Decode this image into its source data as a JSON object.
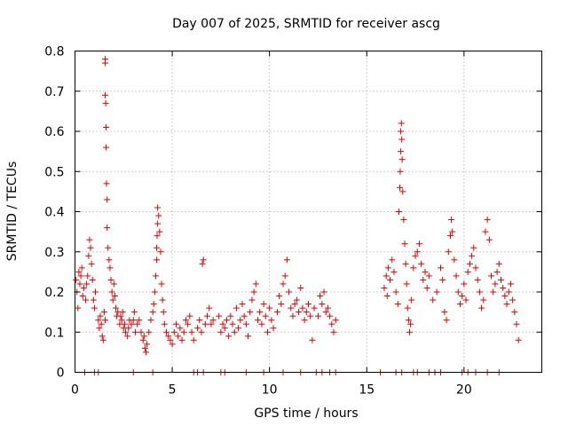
{
  "chart_data": {
    "type": "scatter",
    "title": "Day 007 of 2025, SRMTID for receiver ascg",
    "xlabel": "GPS time / hours",
    "ylabel": "SRMTID / TECUs",
    "xlim": [
      0,
      24
    ],
    "ylim": [
      0,
      0.8
    ],
    "xticks": [
      0,
      5,
      10,
      15,
      20
    ],
    "xtick_labels": [
      "0",
      "5",
      "10",
      "15",
      "20"
    ],
    "yticks": [
      0,
      0.1,
      0.2,
      0.3,
      0.4,
      0.5,
      0.6,
      0.7,
      0.8
    ],
    "ytick_labels": [
      "0",
      "0.1",
      "0.2",
      "0.3",
      "0.4",
      "0.5",
      "0.6",
      "0.7",
      "0.8"
    ],
    "grid": true,
    "marker": "+",
    "color": "#e00000",
    "series": [
      {
        "name": "SRMTID",
        "points": [
          [
            0.05,
            0.23
          ],
          [
            0.1,
            0.2
          ],
          [
            0.15,
            0.16
          ],
          [
            0.2,
            0.25
          ],
          [
            0.25,
            0.22
          ],
          [
            0.3,
            0.24
          ],
          [
            0.35,
            0.26
          ],
          [
            0.4,
            0.19
          ],
          [
            0.45,
            0.21
          ],
          [
            0.55,
            0.18
          ],
          [
            0.6,
            0.22
          ],
          [
            0.65,
            0.24
          ],
          [
            0.7,
            0.29
          ],
          [
            0.75,
            0.33
          ],
          [
            0.8,
            0.31
          ],
          [
            0.85,
            0.27
          ],
          [
            0.9,
            0.23
          ],
          [
            0.95,
            0.18
          ],
          [
            1.0,
            0.16
          ],
          [
            1.05,
            0.2
          ],
          [
            1.2,
            0.13
          ],
          [
            1.25,
            0.11
          ],
          [
            1.3,
            0.14
          ],
          [
            1.35,
            0.12
          ],
          [
            1.4,
            0.09
          ],
          [
            1.45,
            0.08
          ],
          [
            1.5,
            0.15
          ],
          [
            1.55,
            0.13
          ],
          [
            1.55,
            0.78
          ],
          [
            1.55,
            0.77
          ],
          [
            1.55,
            0.69
          ],
          [
            1.58,
            0.67
          ],
          [
            1.6,
            0.61
          ],
          [
            1.6,
            0.56
          ],
          [
            1.62,
            0.47
          ],
          [
            1.65,
            0.43
          ],
          [
            1.65,
            0.36
          ],
          [
            1.7,
            0.31
          ],
          [
            1.75,
            0.28
          ],
          [
            1.8,
            0.26
          ],
          [
            1.85,
            0.23
          ],
          [
            1.9,
            0.2
          ],
          [
            1.95,
            0.18
          ],
          [
            2.0,
            0.22
          ],
          [
            2.05,
            0.19
          ],
          [
            2.1,
            0.16
          ],
          [
            2.15,
            0.14
          ],
          [
            2.2,
            0.15
          ],
          [
            2.3,
            0.12
          ],
          [
            2.35,
            0.14
          ],
          [
            2.4,
            0.13
          ],
          [
            2.45,
            0.15
          ],
          [
            2.5,
            0.11
          ],
          [
            2.55,
            0.12
          ],
          [
            2.6,
            0.1
          ],
          [
            2.7,
            0.09
          ],
          [
            2.75,
            0.11
          ],
          [
            2.8,
            0.13
          ],
          [
            2.9,
            0.12
          ],
          [
            3.0,
            0.13
          ],
          [
            3.05,
            0.15
          ],
          [
            3.1,
            0.1
          ],
          [
            3.2,
            0.12
          ],
          [
            3.3,
            0.13
          ],
          [
            3.4,
            0.1
          ],
          [
            3.5,
            0.08
          ],
          [
            3.55,
            0.09
          ],
          [
            3.6,
            0.06
          ],
          [
            3.65,
            0.05
          ],
          [
            3.7,
            0.07
          ],
          [
            3.8,
            0.1
          ],
          [
            3.9,
            0.13
          ],
          [
            4.0,
            0.15
          ],
          [
            4.05,
            0.17
          ],
          [
            4.1,
            0.2
          ],
          [
            4.15,
            0.24
          ],
          [
            4.2,
            0.28
          ],
          [
            4.2,
            0.31
          ],
          [
            4.22,
            0.34
          ],
          [
            4.25,
            0.37
          ],
          [
            4.25,
            0.41
          ],
          [
            4.3,
            0.39
          ],
          [
            4.35,
            0.35
          ],
          [
            4.4,
            0.3
          ],
          [
            4.45,
            0.22
          ],
          [
            4.5,
            0.18
          ],
          [
            4.55,
            0.15
          ],
          [
            4.6,
            0.12
          ],
          [
            4.7,
            0.1
          ],
          [
            4.8,
            0.09
          ],
          [
            4.9,
            0.08
          ],
          [
            5.0,
            0.07
          ],
          [
            5.1,
            0.1
          ],
          [
            5.2,
            0.12
          ],
          [
            5.3,
            0.09
          ],
          [
            5.4,
            0.11
          ],
          [
            5.5,
            0.08
          ],
          [
            5.6,
            0.1
          ],
          [
            5.7,
            0.13
          ],
          [
            5.8,
            0.12
          ],
          [
            5.9,
            0.14
          ],
          [
            6.0,
            0.1
          ],
          [
            6.1,
            0.08
          ],
          [
            6.3,
            0.11
          ],
          [
            6.4,
            0.13
          ],
          [
            6.5,
            0.1
          ],
          [
            6.55,
            0.27
          ],
          [
            6.6,
            0.28
          ],
          [
            6.7,
            0.12
          ],
          [
            6.8,
            0.14
          ],
          [
            6.9,
            0.16
          ],
          [
            7.0,
            0.12
          ],
          [
            7.1,
            0.13
          ],
          [
            7.4,
            0.14
          ],
          [
            7.5,
            0.1
          ],
          [
            7.6,
            0.12
          ],
          [
            7.7,
            0.11
          ],
          [
            7.8,
            0.13
          ],
          [
            7.9,
            0.09
          ],
          [
            8.0,
            0.14
          ],
          [
            8.1,
            0.12
          ],
          [
            8.2,
            0.1
          ],
          [
            8.3,
            0.16
          ],
          [
            8.4,
            0.11
          ],
          [
            8.5,
            0.13
          ],
          [
            8.6,
            0.17
          ],
          [
            8.7,
            0.14
          ],
          [
            8.8,
            0.12
          ],
          [
            8.9,
            0.09
          ],
          [
            9.0,
            0.15
          ],
          [
            9.1,
            0.18
          ],
          [
            9.2,
            0.2
          ],
          [
            9.3,
            0.22
          ],
          [
            9.4,
            0.13
          ],
          [
            9.5,
            0.15
          ],
          [
            9.6,
            0.12
          ],
          [
            9.7,
            0.17
          ],
          [
            9.8,
            0.14
          ],
          [
            9.9,
            0.1
          ],
          [
            10.0,
            0.16
          ],
          [
            10.1,
            0.13
          ],
          [
            10.2,
            0.11
          ],
          [
            10.4,
            0.15
          ],
          [
            10.5,
            0.19
          ],
          [
            10.6,
            0.17
          ],
          [
            10.7,
            0.22
          ],
          [
            10.8,
            0.24
          ],
          [
            10.9,
            0.28
          ],
          [
            11.0,
            0.2
          ],
          [
            11.1,
            0.16
          ],
          [
            11.2,
            0.14
          ],
          [
            11.3,
            0.17
          ],
          [
            11.4,
            0.18
          ],
          [
            11.5,
            0.15
          ],
          [
            11.6,
            0.21
          ],
          [
            11.7,
            0.16
          ],
          [
            11.8,
            0.13
          ],
          [
            11.9,
            0.15
          ],
          [
            12.0,
            0.17
          ],
          [
            12.1,
            0.14
          ],
          [
            12.2,
            0.08
          ],
          [
            12.3,
            0.16
          ],
          [
            12.5,
            0.14
          ],
          [
            12.6,
            0.19
          ],
          [
            12.7,
            0.17
          ],
          [
            12.8,
            0.2
          ],
          [
            12.9,
            0.15
          ],
          [
            13.0,
            0.16
          ],
          [
            13.1,
            0.14
          ],
          [
            13.2,
            0.12
          ],
          [
            13.3,
            0.1
          ],
          [
            13.4,
            0.13
          ],
          [
            15.9,
            0.21
          ],
          [
            16.0,
            0.24
          ],
          [
            16.05,
            0.19
          ],
          [
            16.1,
            0.26
          ],
          [
            16.2,
            0.23
          ],
          [
            16.3,
            0.28
          ],
          [
            16.4,
            0.25
          ],
          [
            16.5,
            0.2
          ],
          [
            16.6,
            0.17
          ],
          [
            16.65,
            0.4
          ],
          [
            16.7,
            0.46
          ],
          [
            16.72,
            0.5
          ],
          [
            16.75,
            0.55
          ],
          [
            16.75,
            0.6
          ],
          [
            16.78,
            0.62
          ],
          [
            16.8,
            0.58
          ],
          [
            16.82,
            0.53
          ],
          [
            16.85,
            0.45
          ],
          [
            16.9,
            0.38
          ],
          [
            16.95,
            0.32
          ],
          [
            17.0,
            0.27
          ],
          [
            17.05,
            0.22
          ],
          [
            17.1,
            0.16
          ],
          [
            17.15,
            0.13
          ],
          [
            17.2,
            0.1
          ],
          [
            17.25,
            0.12
          ],
          [
            17.3,
            0.18
          ],
          [
            17.4,
            0.26
          ],
          [
            17.5,
            0.29
          ],
          [
            17.6,
            0.3
          ],
          [
            17.7,
            0.32
          ],
          [
            17.8,
            0.27
          ],
          [
            17.9,
            0.23
          ],
          [
            18.0,
            0.25
          ],
          [
            18.1,
            0.21
          ],
          [
            18.2,
            0.24
          ],
          [
            18.4,
            0.18
          ],
          [
            18.6,
            0.2
          ],
          [
            18.8,
            0.26
          ],
          [
            18.9,
            0.23
          ],
          [
            19.0,
            0.15
          ],
          [
            19.1,
            0.13
          ],
          [
            19.2,
            0.3
          ],
          [
            19.3,
            0.34
          ],
          [
            19.35,
            0.38
          ],
          [
            19.4,
            0.35
          ],
          [
            19.5,
            0.28
          ],
          [
            19.6,
            0.24
          ],
          [
            19.7,
            0.2
          ],
          [
            19.8,
            0.17
          ],
          [
            19.9,
            0.19
          ],
          [
            20.0,
            0.22
          ],
          [
            20.1,
            0.18
          ],
          [
            20.2,
            0.25
          ],
          [
            20.3,
            0.27
          ],
          [
            20.4,
            0.29
          ],
          [
            20.5,
            0.31
          ],
          [
            20.6,
            0.26
          ],
          [
            20.7,
            0.23
          ],
          [
            20.8,
            0.2
          ],
          [
            20.9,
            0.16
          ],
          [
            21.0,
            0.18
          ],
          [
            21.1,
            0.35
          ],
          [
            21.2,
            0.38
          ],
          [
            21.3,
            0.33
          ],
          [
            21.4,
            0.24
          ],
          [
            21.5,
            0.2
          ],
          [
            21.6,
            0.22
          ],
          [
            21.7,
            0.25
          ],
          [
            21.8,
            0.27
          ],
          [
            21.9,
            0.23
          ],
          [
            22.0,
            0.21
          ],
          [
            22.1,
            0.19
          ],
          [
            22.2,
            0.17
          ],
          [
            22.3,
            0.2
          ],
          [
            22.4,
            0.22
          ],
          [
            22.5,
            0.18
          ],
          [
            22.6,
            0.15
          ],
          [
            22.7,
            0.12
          ],
          [
            22.8,
            0.08
          ],
          [
            0.5,
            0
          ],
          [
            1.0,
            0
          ],
          [
            1.2,
            0
          ],
          [
            3.0,
            0
          ],
          [
            4.0,
            0
          ],
          [
            6.1,
            0
          ],
          [
            6.3,
            0
          ],
          [
            6.6,
            0
          ],
          [
            7.5,
            0
          ],
          [
            7.7,
            0
          ],
          [
            8.8,
            0
          ],
          [
            9.7,
            0
          ],
          [
            10.7,
            0
          ],
          [
            11.6,
            0
          ],
          [
            12.4,
            0
          ],
          [
            12.7,
            0
          ],
          [
            13.1,
            0
          ],
          [
            13.4,
            0
          ],
          [
            15.7,
            0
          ],
          [
            16.5,
            0
          ],
          [
            16.8,
            0
          ],
          [
            17.4,
            0
          ],
          [
            17.6,
            0
          ],
          [
            18.2,
            0
          ],
          [
            18.5,
            0
          ],
          [
            18.8,
            0
          ],
          [
            19.9,
            0
          ],
          [
            20.2,
            0
          ],
          [
            20.6,
            0
          ],
          [
            21.2,
            0
          ],
          [
            21.8,
            0
          ]
        ]
      }
    ]
  }
}
